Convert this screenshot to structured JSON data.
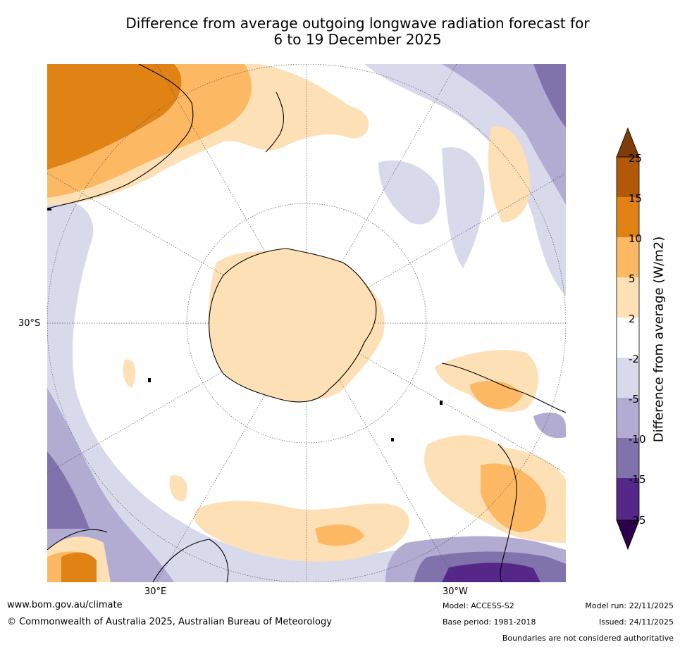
{
  "title_line1": "Difference from average outgoing longwave radiation forecast for",
  "title_line2": "6 to 19 December 2025",
  "map": {
    "lon_labels": [
      "30°E",
      "30°W"
    ],
    "lat_label": "30°S",
    "legend_title": "Difference from average (W/m2)",
    "legend_ticks": [
      "25",
      "15",
      "10",
      "5",
      "2",
      "-2",
      "-5",
      "-10",
      "-15",
      "-25"
    ],
    "legend_colors": [
      "#7f3b08",
      "#b35806",
      "#e08214",
      "#fdb863",
      "#fee0b6",
      "#ffffff",
      "#d8daeb",
      "#b2abd2",
      "#8073ac",
      "#542788",
      "#2d004b"
    ]
  },
  "footer": {
    "website": "www.bom.gov.au/climate",
    "copyright": "© Commonwealth of Australia 2025, Australian Bureau of Meteorology",
    "model": "Model: ACCESS-S2",
    "base_period": "Base period: 1981-2018",
    "model_run": "Model run: 22/11/2025",
    "issued": "Issued: 24/11/2025",
    "disclaimer": "Boundaries are not considered authoritative"
  }
}
